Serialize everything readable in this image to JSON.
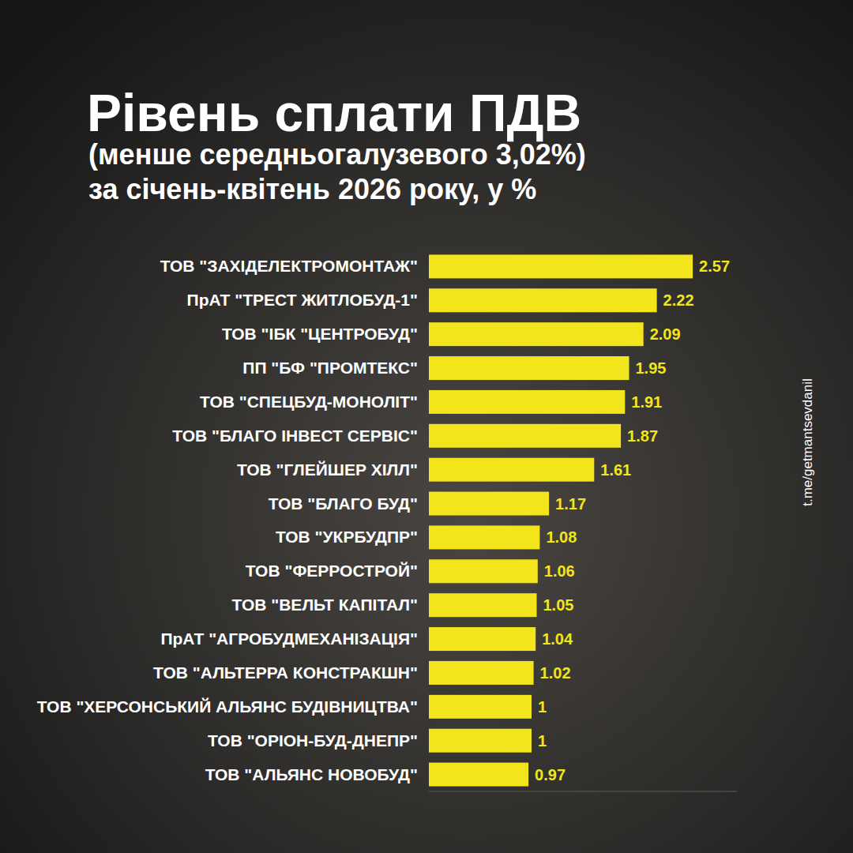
{
  "chart_data": {
    "type": "bar",
    "orientation": "horizontal",
    "title": "Рівень сплати ПДВ",
    "subtitle": [
      "(менше середньогалузевого 3,02%)",
      "за січень-квітень 2026 року, у %"
    ],
    "annotations": [
      "t.me/getmantsevdanil"
    ],
    "categories": [
      "ТОВ \"ЗАХІДЕЛЕКТРОМОНТАЖ\"",
      "ПрАТ \"ТРЕСТ ЖИТЛОБУД-1\"",
      "ТОВ \"ІБК \"ЦЕНТРОБУД\"",
      "ПП \"БФ \"ПРОМТЕКС\"",
      "ТОВ \"СПЕЦБУД-МОНОЛІТ\"",
      "ТОВ \"БЛАГО ІНВЕСТ СЕРВІС\"",
      "ТОВ \"ГЛЕЙШЕР ХІЛЛ\"",
      "ТОВ \"БЛАГО БУД\"",
      "ТОВ \"УКРБУДПР\"",
      "ТОВ \"ФЕРРОСТРОЙ\"",
      "ТОВ \"ВЕЛЬТ КАПІТАЛ\"",
      "ПрАТ \"АГРОБУДМЕХАНІЗАЦІЯ\"",
      "ТОВ \"АЛЬТЕРРА КОНСТРАКШН\"",
      "ТОВ \"ХЕРСОНСЬКИЙ АЛЬЯНС БУДІВНИЦТВА\"",
      "ТОВ \"ОРІОН-БУД-ДНЕПР\"",
      "ТОВ \"АЛЬЯНС НОВОБУД\""
    ],
    "values": [
      2.57,
      2.22,
      2.09,
      1.95,
      1.91,
      1.87,
      1.61,
      1.17,
      1.08,
      1.06,
      1.05,
      1.04,
      1.02,
      1,
      1,
      0.97
    ],
    "color": "#f2e51b",
    "xlim": [
      0,
      3
    ],
    "grid": false,
    "data_labels": true,
    "tick_labels": "y"
  }
}
